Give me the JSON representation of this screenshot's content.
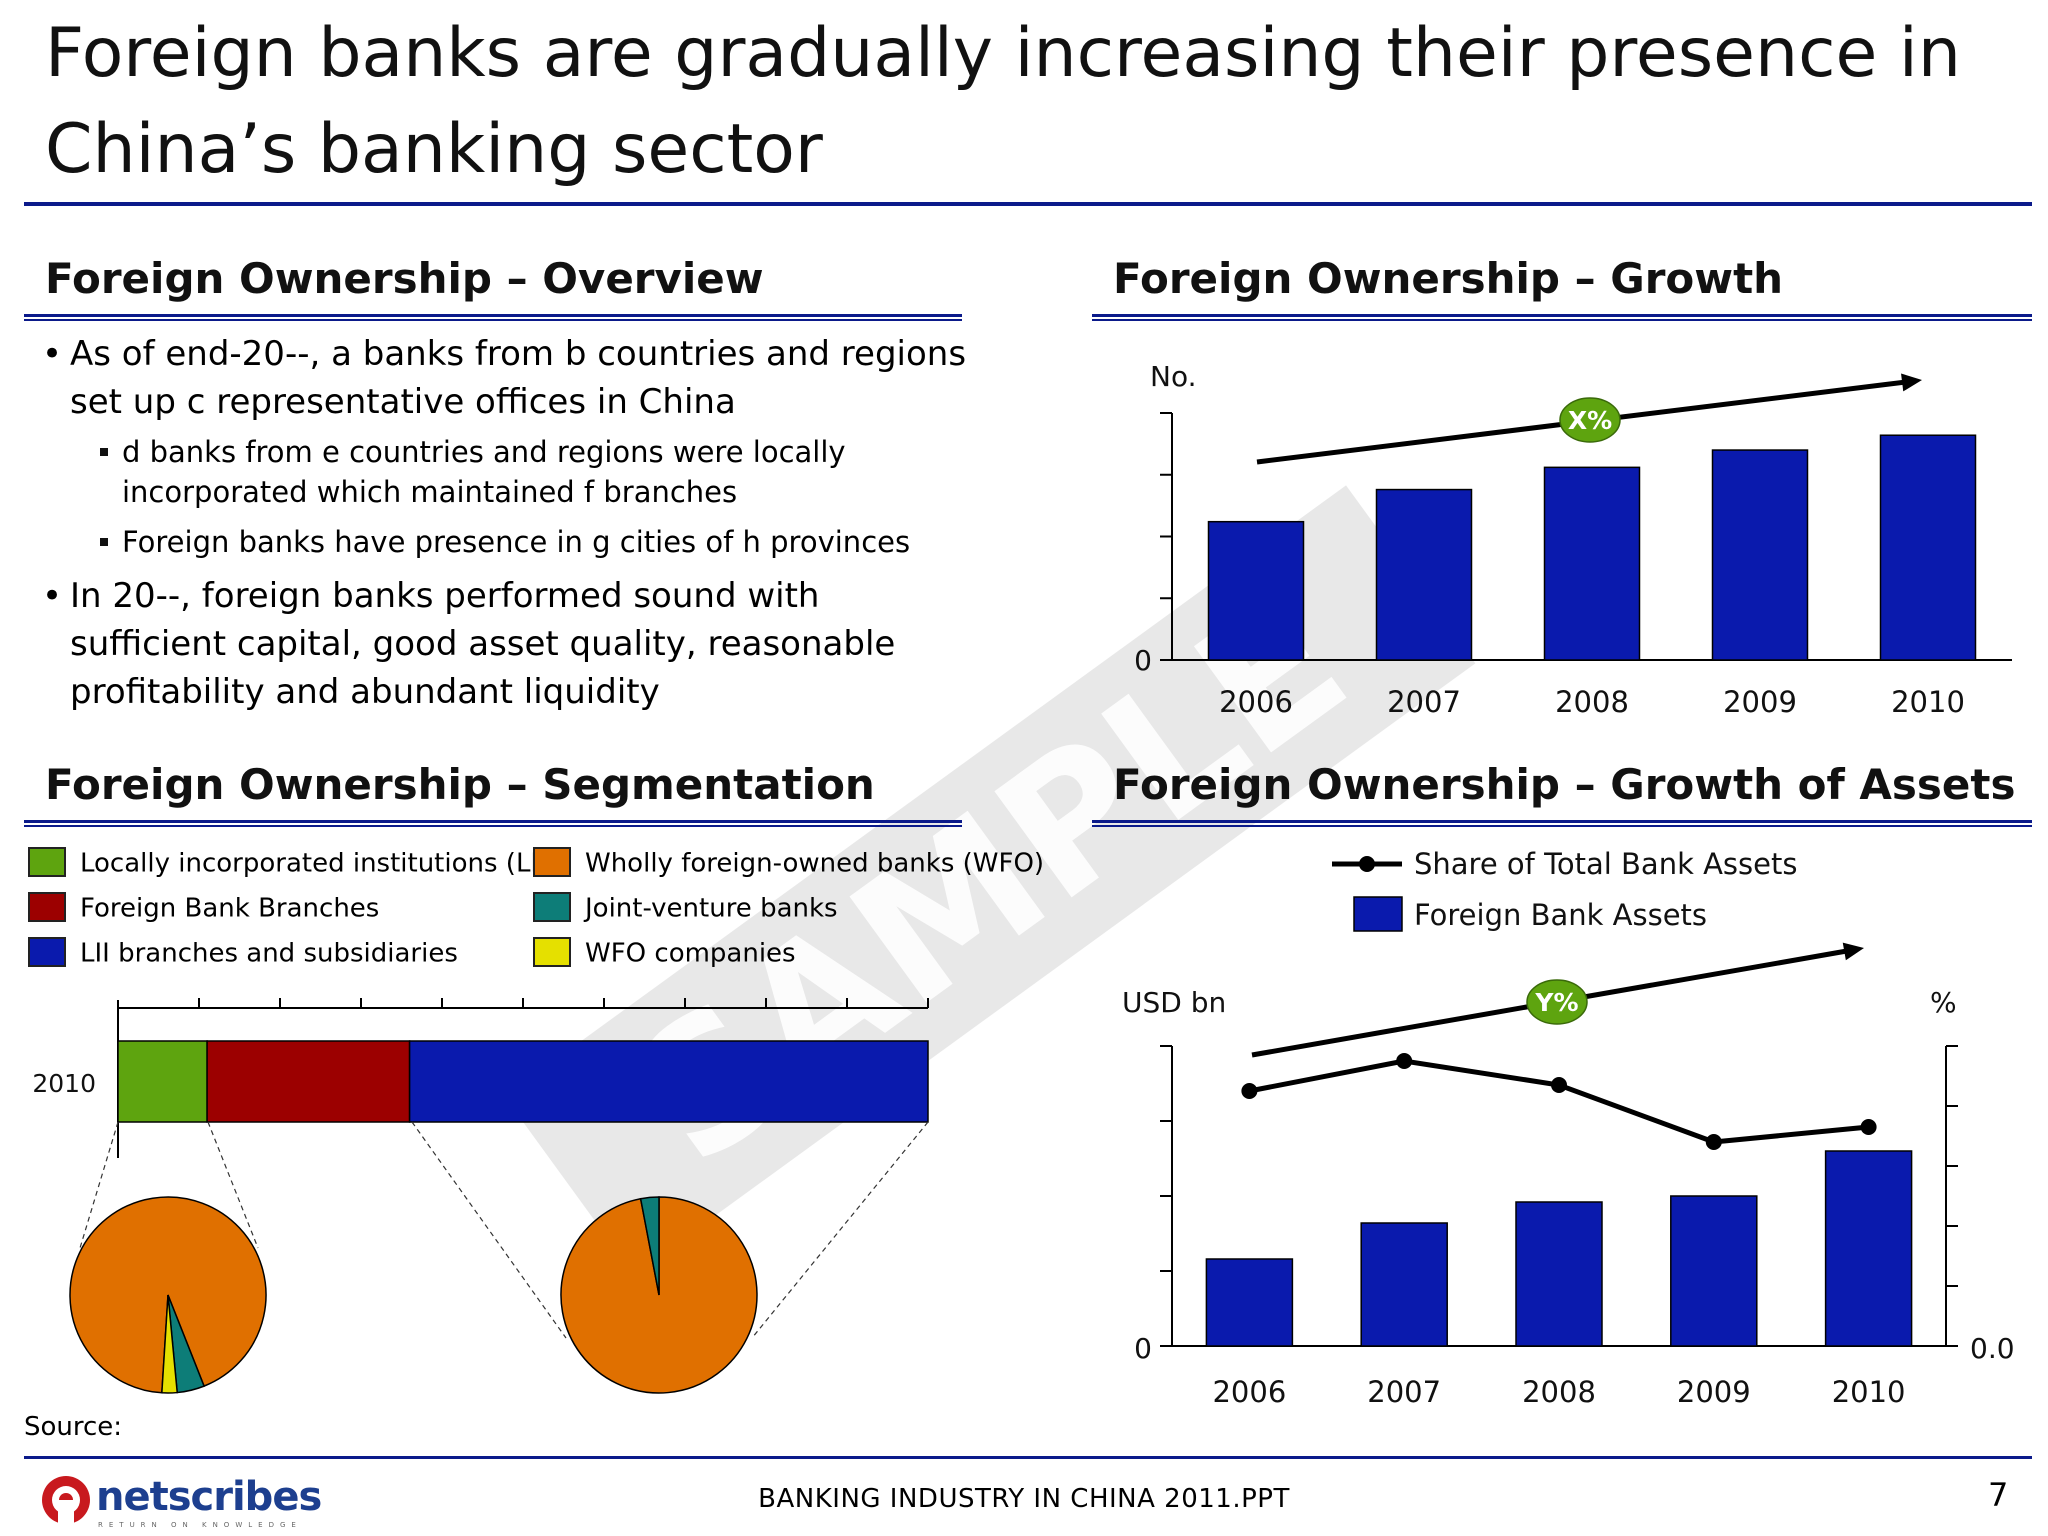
{
  "title": "Foreign banks are gradually increasing their presence in China’s banking sector",
  "overview": {
    "title": "Foreign Ownership – Overview",
    "bullets": [
      {
        "text": "As of end-20--, a banks from b countries and regions set up c representative offices in China",
        "sub": [
          "d banks from e countries and regions were locally incorporated which maintained f branches",
          "Foreign banks have presence in g cities of h provinces"
        ]
      },
      {
        "text": "In 20--, foreign banks performed sound with sufficient capital, good asset quality, reasonable profitability and abundant liquidity",
        "sub": []
      }
    ]
  },
  "segmentation": {
    "title": "Foreign Ownership – Segmentation",
    "legend": [
      {
        "label": "Locally incorporated institutions (LII)",
        "color": "#5ea40f"
      },
      {
        "label": "Foreign Bank Branches",
        "color": "#9c0000"
      },
      {
        "label": "LII branches and subsidiaries",
        "color": "#0a1aad"
      },
      {
        "label": "Wholly foreign-owned banks (WFO)",
        "color": "#e07000"
      },
      {
        "label": "Joint-venture banks",
        "color": "#0d7d78"
      },
      {
        "label": "WFO companies",
        "color": "#e5e000"
      }
    ]
  },
  "growth": {
    "title": "Foreign Ownership – Growth"
  },
  "assets": {
    "title": "Foreign Ownership – Growth of Assets"
  },
  "chart_data": [
    {
      "type": "bar",
      "title": "Foreign Ownership – Growth",
      "ylabel": "No.",
      "categories": [
        "2006",
        "2007",
        "2008",
        "2009",
        "2010"
      ],
      "values": [
        56,
        69,
        78,
        85,
        91
      ],
      "ylim": [
        0,
        100
      ],
      "y_tick_labels": [
        "0"
      ],
      "color": "#0a1aad",
      "annotation": "X%",
      "annotation_color": "#5ea40f"
    },
    {
      "type": "bar",
      "title": "Foreign Ownership – Growth of Assets",
      "ylabel": "USD bn",
      "y2label": "%",
      "categories": [
        "2006",
        "2007",
        "2008",
        "2009",
        "2010"
      ],
      "y_tick_labels": [
        "0"
      ],
      "y2_tick_labels": [
        "0.0"
      ],
      "series": [
        {
          "name": "Foreign Bank Assets",
          "type": "bar",
          "values": [
            29,
            41,
            48,
            50,
            65
          ],
          "color": "#0a1aad"
        },
        {
          "name": "Share of Total Bank Assets",
          "type": "line",
          "values": [
            85,
            95,
            87,
            68,
            73
          ],
          "color": "#000000"
        }
      ],
      "ylim": [
        0,
        100
      ],
      "y2lim": [
        0,
        100
      ],
      "legend_position": "top",
      "annotation": "Y%",
      "annotation_color": "#5ea40f"
    },
    {
      "type": "bar",
      "title": "Foreign Ownership – Segmentation",
      "categories": [
        "2010"
      ],
      "series": [
        {
          "name": "Locally incorporated institutions (LII)",
          "values": [
            11
          ],
          "color": "#5ea40f"
        },
        {
          "name": "Foreign Bank Branches",
          "values": [
            25
          ],
          "color": "#9c0000"
        },
        {
          "name": "LII branches and subsidiaries",
          "values": [
            64
          ],
          "color": "#0a1aad"
        }
      ],
      "orientation": "horizontal",
      "stacked": true
    },
    {
      "type": "pie",
      "labels": [
        "Wholly foreign-owned banks (WFO)",
        "Joint-venture banks",
        "WFO companies"
      ],
      "values": [
        93,
        4.5,
        2.5
      ],
      "colors": [
        "#e07000",
        "#0d7d78",
        "#e5e000"
      ]
    },
    {
      "type": "pie",
      "labels": [
        "Wholly foreign-owned banks (WFO)",
        "Joint-venture banks"
      ],
      "values": [
        97,
        3
      ],
      "colors": [
        "#e07000",
        "#0d7d78"
      ]
    }
  ],
  "source_label": "Source:",
  "footer": {
    "text": "BANKING INDUSTRY IN CHINA 2011.PPT",
    "page": "7",
    "logo_text": "netscribes",
    "logo_tagline": "RETURN ON KNOWLEDGE",
    "watermark": "SAMPLE"
  }
}
